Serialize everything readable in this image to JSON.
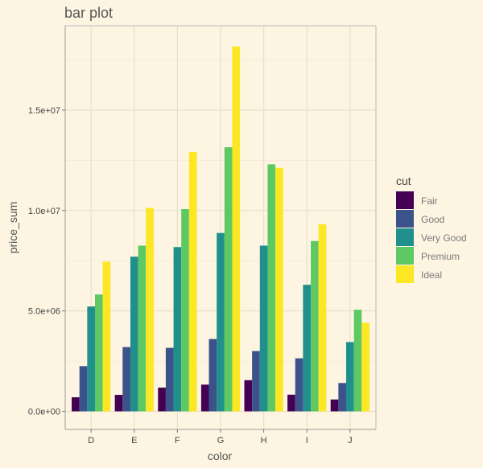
{
  "chart_data": {
    "type": "bar",
    "title": "bar plot",
    "xlabel": "color",
    "ylabel": "price_sum",
    "categories": [
      "D",
      "E",
      "F",
      "G",
      "H",
      "I",
      "J"
    ],
    "ylim": [
      -900000,
      19200000
    ],
    "yticks": [
      0,
      5000000,
      10000000,
      15000000
    ],
    "ytick_labels": [
      "0.0e+00",
      "5.0e+06",
      "1.0e+07",
      "1.5e+07"
    ],
    "grid": true,
    "legend": {
      "title": "cut",
      "position": "right"
    },
    "series": [
      {
        "name": "Fair",
        "color": "#440154",
        "values": [
          700000,
          820000,
          1180000,
          1330000,
          1550000,
          830000,
          590000
        ]
      },
      {
        "name": "Good",
        "color": "#3b528b",
        "values": [
          2250000,
          3200000,
          3160000,
          3600000,
          3000000,
          2640000,
          1410000
        ]
      },
      {
        "name": "Very Good",
        "color": "#21908c",
        "values": [
          5220000,
          7700000,
          8180000,
          8880000,
          8250000,
          6300000,
          3450000
        ]
      },
      {
        "name": "Premium",
        "color": "#5ec962",
        "values": [
          5820000,
          8250000,
          10070000,
          13150000,
          12300000,
          8480000,
          5060000
        ]
      },
      {
        "name": "Ideal",
        "color": "#fde725",
        "values": [
          7450000,
          10130000,
          12920000,
          18170000,
          12120000,
          9320000,
          4410000
        ]
      }
    ]
  }
}
